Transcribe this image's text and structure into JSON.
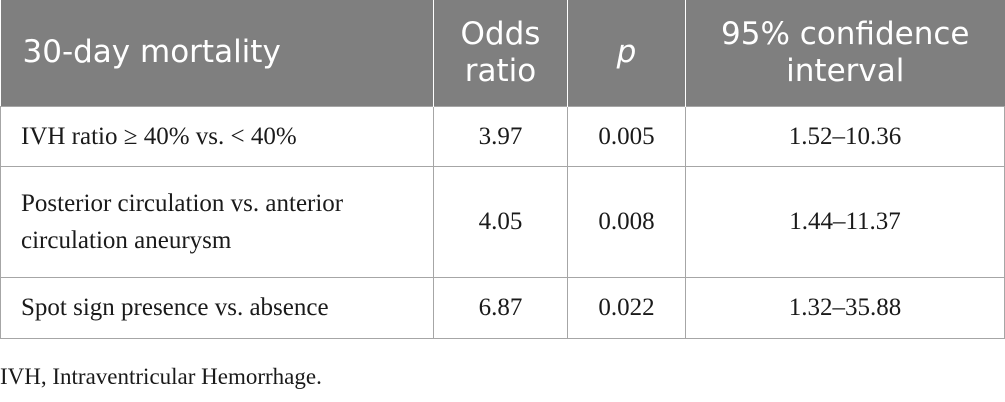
{
  "table": {
    "headers": [
      "30-day mortality",
      "Odds ratio",
      "p",
      "95% confidence interval"
    ],
    "rows": [
      {
        "label": "IVH ratio ≥ 40% vs. < 40%",
        "odds_ratio": "3.97",
        "p": "0.005",
        "ci": "1.52–10.36"
      },
      {
        "label": "Posterior circulation vs. anterior circulation aneurysm",
        "odds_ratio": "4.05",
        "p": "0.008",
        "ci": "1.44–11.37"
      },
      {
        "label": "Spot sign presence vs. absence",
        "odds_ratio": "6.87",
        "p": "0.022",
        "ci": "1.32–35.88"
      }
    ]
  },
  "footnote": "IVH, Intraventricular Hemorrhage.",
  "colors": {
    "header_background": "#7f7f7f",
    "header_text": "#ffffff",
    "grid_lines": "#a6a6a6"
  }
}
